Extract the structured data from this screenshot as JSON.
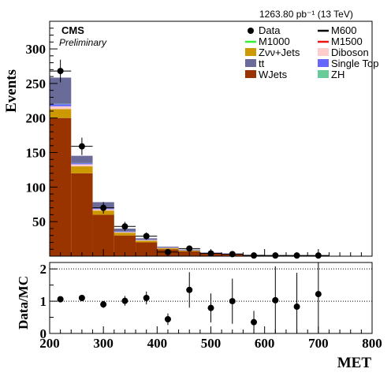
{
  "lumi_label": "1263.80 pb⁻¹ (13 TeV)",
  "experiment": "CMS",
  "status": "Preliminary",
  "colors": {
    "wjets": "#993300",
    "ttbar": "#6b6b99",
    "znunu": "#cc9900",
    "diboson": "#ffcccc",
    "singletop": "#6666ff",
    "zh": "#66cc99",
    "m1000": "#33ee33",
    "m1500": "#ee1111",
    "m600": "#000000"
  },
  "chart_data": [
    {
      "type": "bar",
      "stacked": true,
      "ylabel": "Events",
      "xlim": [
        200,
        800
      ],
      "ylim": [
        0,
        340
      ],
      "y_ticks": [
        50,
        100,
        150,
        200,
        250,
        300
      ],
      "bin_edges": [
        200,
        240,
        280,
        320,
        360,
        400,
        440,
        480,
        520,
        560,
        600,
        640,
        680,
        720,
        760,
        800
      ],
      "series": [
        {
          "name": "WJets",
          "key": "wjets",
          "values": [
            200,
            120,
            60,
            30,
            20,
            10,
            7,
            4,
            3,
            1.5,
            1,
            0.6,
            0.4,
            0.3,
            0.2
          ]
        },
        {
          "name": "Zνν+Jets",
          "key": "znunu",
          "values": [
            13,
            10,
            6,
            4,
            2.5,
            1.5,
            1,
            0.6,
            0.4,
            0.3,
            0.2,
            0.1,
            0.1,
            0.1,
            0.1
          ]
        },
        {
          "name": "Diboson",
          "key": "diboson",
          "values": [
            4,
            3,
            2,
            1,
            0.8,
            0.5,
            0.3,
            0.2,
            0.2,
            0.1,
            0.1,
            0.1,
            0,
            0,
            0
          ]
        },
        {
          "name": "Single Top",
          "key": "singletop",
          "values": [
            3,
            1.5,
            1,
            0.8,
            0.5,
            0.3,
            0.2,
            0.1,
            0.1,
            0.1,
            0,
            0,
            0,
            0,
            0
          ]
        },
        {
          "name": "ZH",
          "key": "zh",
          "values": [
            0.5,
            0.3,
            0.2,
            0.1,
            0.1,
            0,
            0,
            0,
            0,
            0,
            0,
            0,
            0,
            0,
            0
          ]
        },
        {
          "name": "tt",
          "key": "ttbar",
          "values": [
            38,
            10.5,
            9,
            4,
            2,
            1.5,
            1,
            0.6,
            0.4,
            0.3,
            0.2,
            0.2,
            0.1,
            0.1,
            0.1
          ]
        }
      ],
      "data_points": {
        "name": "Data",
        "x": [
          220,
          260,
          300,
          340,
          380,
          420,
          460,
          500,
          540,
          580,
          620,
          660,
          700
        ],
        "y": [
          268,
          159,
          70,
          43,
          29,
          6,
          11,
          4,
          3,
          1,
          1,
          1,
          1
        ],
        "err": [
          16.4,
          12.6,
          8.4,
          6.6,
          5.4,
          2.4,
          3.3,
          2,
          1.7,
          1,
          1,
          1,
          1
        ]
      },
      "legend": [
        {
          "name": "Data",
          "key": "data",
          "style": "marker"
        },
        {
          "name": "M600",
          "key": "m600",
          "style": "line"
        },
        {
          "name": "M1000",
          "key": "m1000",
          "style": "line"
        },
        {
          "name": "M1500",
          "key": "m1500",
          "style": "line"
        },
        {
          "name": "Zνν+Jets",
          "key": "znunu",
          "style": "fill"
        },
        {
          "name": "Diboson",
          "key": "diboson",
          "style": "fill"
        },
        {
          "name": "tt",
          "key": "ttbar",
          "style": "fill"
        },
        {
          "name": "Single Top",
          "key": "singletop",
          "style": "fill"
        },
        {
          "name": "WJets",
          "key": "wjets",
          "style": "fill"
        },
        {
          "name": "ZH",
          "key": "zh",
          "style": "fill"
        }
      ]
    },
    {
      "type": "scatter",
      "xlabel": "MET",
      "ylabel": "Data/MC",
      "xlim": [
        200,
        800
      ],
      "ylim": [
        0,
        2.2
      ],
      "y_ticks": [
        0,
        1,
        2
      ],
      "x_ticks": [
        200,
        300,
        400,
        500,
        600,
        700,
        800
      ],
      "x": [
        220,
        260,
        300,
        340,
        380,
        420,
        460,
        500,
        540,
        580,
        620,
        660,
        700
      ],
      "y": [
        1.06,
        1.1,
        0.9,
        1.01,
        1.1,
        0.44,
        1.35,
        0.79,
        1.0,
        0.35,
        1.03,
        0.83,
        1.22
      ],
      "err": [
        0.07,
        0.09,
        0.11,
        0.15,
        0.2,
        0.18,
        0.55,
        0.45,
        0.7,
        0.35,
        1.05,
        1.05,
        1.2
      ]
    }
  ]
}
